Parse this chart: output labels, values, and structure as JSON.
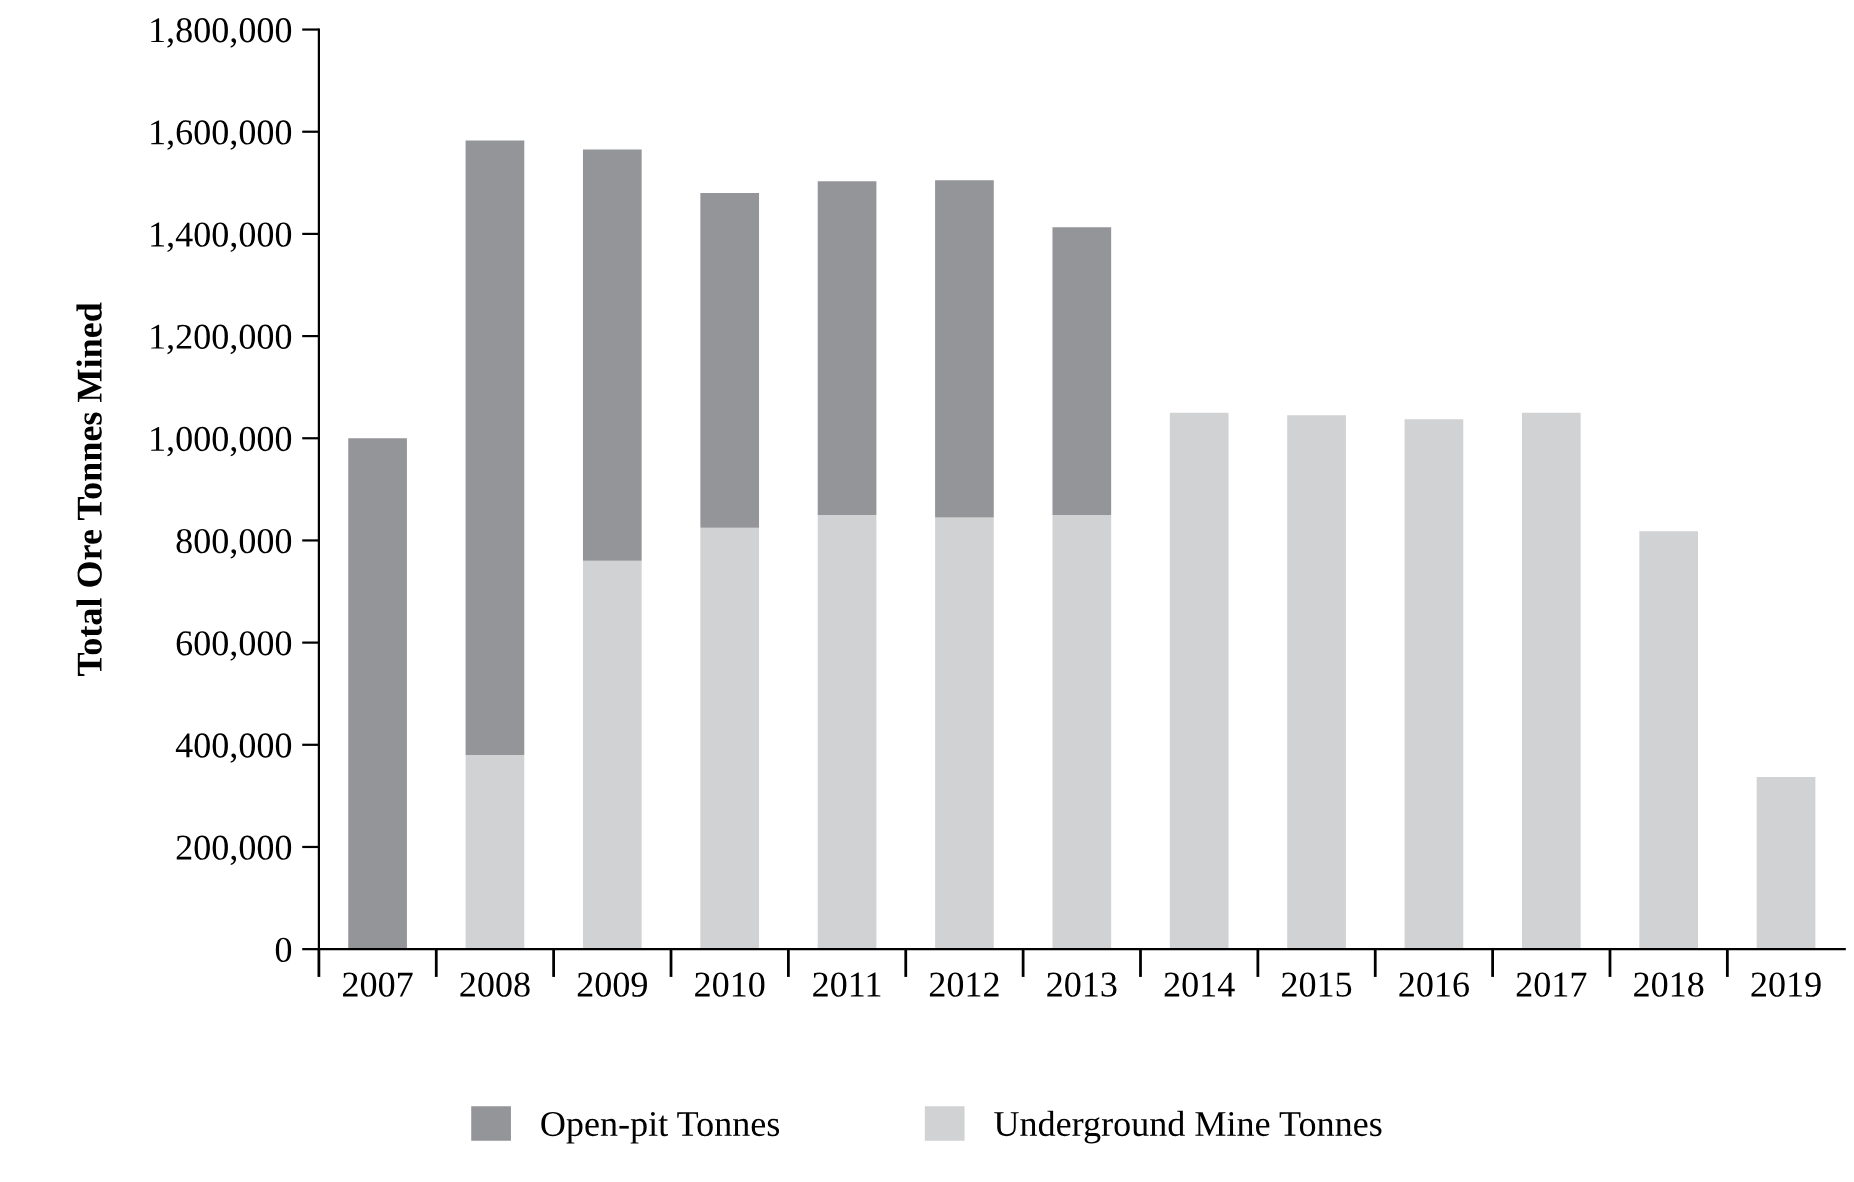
{
  "chart_data": {
    "type": "bar",
    "stacked": true,
    "ylabel": "Total Ore Tonnes Mined",
    "categories": [
      "2007",
      "2008",
      "2009",
      "2010",
      "2011",
      "2012",
      "2013",
      "2014",
      "2015",
      "2016",
      "2017",
      "2018",
      "2019"
    ],
    "series": [
      {
        "name": "Underground Mine Tonnes",
        "color": "#d1d2d4",
        "values": [
          0,
          380000,
          760000,
          825000,
          850000,
          845000,
          850000,
          1050000,
          1045000,
          1037000,
          1050000,
          818000,
          337000
        ]
      },
      {
        "name": "Open-pit Tonnes",
        "color": "#949599",
        "values": [
          1000000,
          1203000,
          805000,
          655000,
          653000,
          660000,
          563000,
          0,
          0,
          0,
          0,
          0,
          0
        ]
      }
    ],
    "ylim": [
      0,
      1800000
    ],
    "yticks": [
      {
        "value": 0,
        "label": "0"
      },
      {
        "value": 200000,
        "label": "200,000"
      },
      {
        "value": 400000,
        "label": "400,000"
      },
      {
        "value": 600000,
        "label": "600,000"
      },
      {
        "value": 800000,
        "label": "800,000"
      },
      {
        "value": 1000000,
        "label": "1,000,000"
      },
      {
        "value": 1200000,
        "label": "1,200,000"
      },
      {
        "value": 1400000,
        "label": "1,400,000"
      },
      {
        "value": 1600000,
        "label": "1,600,000"
      },
      {
        "value": 1800000,
        "label": "1,800,000"
      }
    ],
    "grid": false,
    "legend": "bottom"
  }
}
